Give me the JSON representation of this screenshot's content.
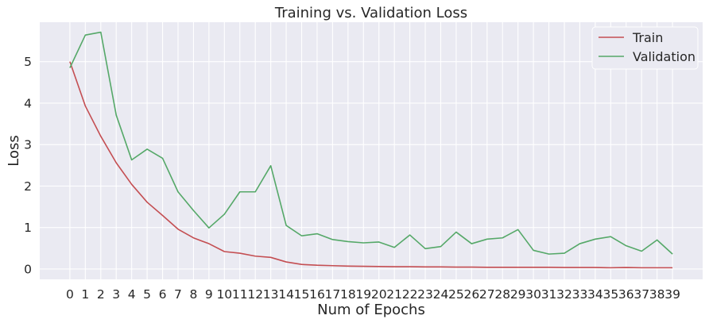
{
  "chart_data": {
    "type": "line",
    "title": "Training vs. Validation Loss",
    "xlabel": "Num of Epochs",
    "ylabel": "Loss",
    "x": [
      0,
      1,
      2,
      3,
      4,
      5,
      6,
      7,
      8,
      9,
      10,
      11,
      12,
      13,
      14,
      15,
      16,
      17,
      18,
      19,
      20,
      21,
      22,
      23,
      24,
      25,
      26,
      27,
      28,
      29,
      30,
      31,
      32,
      33,
      34,
      35,
      36,
      37,
      38,
      39
    ],
    "xticks": [
      "0",
      "1",
      "2",
      "3",
      "4",
      "5",
      "6",
      "7",
      "8",
      "9",
      "10",
      "11",
      "12",
      "13",
      "14",
      "15",
      "16",
      "17",
      "18",
      "19",
      "20",
      "21",
      "22",
      "23",
      "24",
      "25",
      "26",
      "27",
      "28",
      "29",
      "30",
      "31",
      "32",
      "33",
      "34",
      "35",
      "36",
      "37",
      "38",
      "39"
    ],
    "yticks": [
      "0",
      "1",
      "2",
      "3",
      "4",
      "5"
    ],
    "ytick_values": [
      0,
      1,
      2,
      3,
      4,
      5
    ],
    "xlim": [
      -1.95,
      40.95
    ],
    "ylim": [
      -0.25,
      5.95
    ],
    "grid": true,
    "legend_position": "top-right",
    "series": [
      {
        "name": "Train",
        "color": "#c44e52",
        "values": [
          5.0,
          3.93,
          3.2,
          2.56,
          2.04,
          1.61,
          1.29,
          0.96,
          0.75,
          0.61,
          0.42,
          0.38,
          0.31,
          0.28,
          0.17,
          0.11,
          0.09,
          0.08,
          0.07,
          0.065,
          0.06,
          0.055,
          0.055,
          0.05,
          0.05,
          0.045,
          0.045,
          0.04,
          0.04,
          0.04,
          0.04,
          0.04,
          0.035,
          0.035,
          0.035,
          0.03,
          0.035,
          0.03,
          0.03,
          0.03
        ]
      },
      {
        "name": "Validation",
        "color": "#55a868",
        "values": [
          4.85,
          5.64,
          5.71,
          3.71,
          2.63,
          2.89,
          2.67,
          1.86,
          1.41,
          0.99,
          1.32,
          1.86,
          1.86,
          2.49,
          1.05,
          0.8,
          0.85,
          0.71,
          0.66,
          0.63,
          0.65,
          0.52,
          0.82,
          0.49,
          0.54,
          0.89,
          0.61,
          0.72,
          0.75,
          0.95,
          0.45,
          0.36,
          0.38,
          0.61,
          0.72,
          0.78,
          0.56,
          0.43,
          0.7,
          0.36
        ]
      }
    ]
  }
}
